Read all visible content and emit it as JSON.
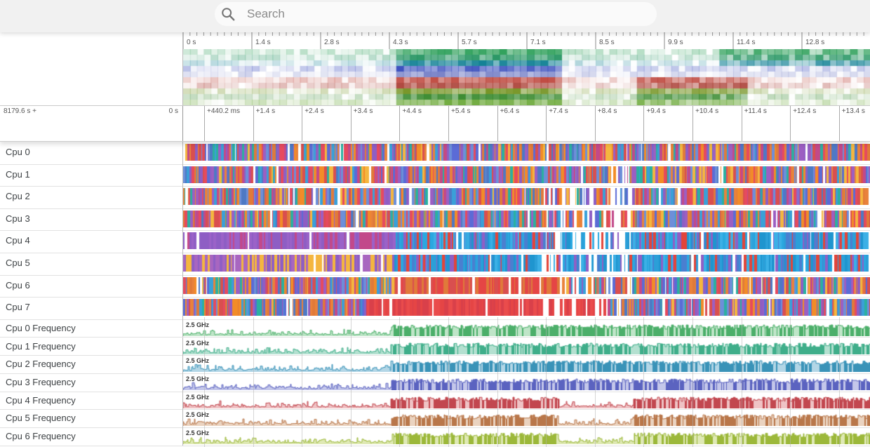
{
  "search": {
    "placeholder": "Search",
    "value": ""
  },
  "overview": {
    "ticks": [
      "0 s",
      "1.4 s",
      "2.8 s",
      "4.3 s",
      "5.7 s",
      "7.1 s",
      "8.5 s",
      "9.9 s",
      "11.4 s",
      "12.8 s"
    ]
  },
  "timeline": {
    "offset_label": "8179.6 s +",
    "zero_label": "0 s",
    "ticks": [
      "+440.2 ms",
      "+1.4 s",
      "+2.4 s",
      "+3.4 s",
      "+4.4 s",
      "+5.4 s",
      "+6.4 s",
      "+7.4 s",
      "+8.4 s",
      "+9.4 s",
      "+10.4 s",
      "+11.4 s",
      "+12.4 s",
      "+13.4 s"
    ]
  },
  "cpu_tracks": [
    {
      "label": "Cpu 0",
      "palette": "mixed"
    },
    {
      "label": "Cpu 1",
      "palette": "mixed"
    },
    {
      "label": "Cpu 2",
      "palette": "mixed"
    },
    {
      "label": "Cpu 3",
      "palette": "mixed"
    },
    {
      "label": "Cpu 4",
      "palette": "blue"
    },
    {
      "label": "Cpu 5",
      "palette": "blue"
    },
    {
      "label": "Cpu 6",
      "palette": "mixed"
    },
    {
      "label": "Cpu 7",
      "palette": "red"
    }
  ],
  "freq_tracks": [
    {
      "label": "Cpu 0 Frequency",
      "unit": "2.5 GHz",
      "color": "#4caf6a",
      "fill": "#bfe5c8"
    },
    {
      "label": "Cpu 1 Frequency",
      "unit": "2.5 GHz",
      "color": "#3fae8a",
      "fill": "#b4e0d0"
    },
    {
      "label": "Cpu 2 Frequency",
      "unit": "2.5 GHz",
      "color": "#3a93b8",
      "fill": "#b3d6e6"
    },
    {
      "label": "Cpu 3 Frequency",
      "unit": "2.5 GHz",
      "color": "#5b63c0",
      "fill": "#c4c7ea"
    },
    {
      "label": "Cpu 4 Frequency",
      "unit": "2.5 GHz",
      "color": "#c2474f",
      "fill": "#efc3c5"
    },
    {
      "label": "Cpu 5 Frequency",
      "unit": "2.5 GHz",
      "color": "#b9774a",
      "fill": "#ead3c0"
    },
    {
      "label": "Cpu 6 Frequency",
      "unit": "2.5 GHz",
      "color": "#9cb83a",
      "fill": "#dfe9b5"
    }
  ],
  "colors": {
    "accent": "#1a73e8",
    "grid": "#d0d0d0"
  }
}
